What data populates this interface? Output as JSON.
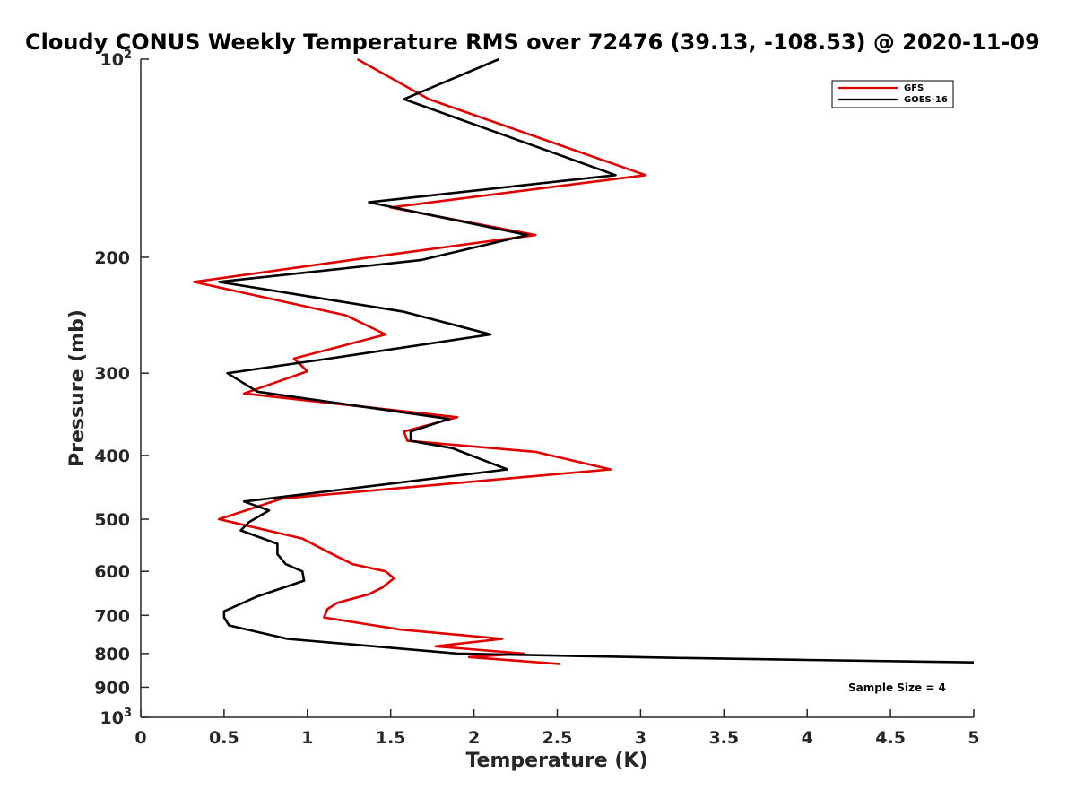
{
  "chart_data": {
    "type": "line",
    "title": "Cloudy CONUS Weekly Temperature RMS over 72476 (39.13, -108.53) @ 2020-11-09",
    "xlabel": "Temperature (K)",
    "ylabel": "Pressure (mb)",
    "xlim": [
      0,
      5
    ],
    "ylim": [
      100,
      1000
    ],
    "yscale": "log",
    "yreversed": true,
    "x_ticks": [
      "0",
      "0.5",
      "1",
      "1.5",
      "2",
      "2.5",
      "3",
      "3.5",
      "4",
      "4.5",
      "5"
    ],
    "y_ticks": [
      {
        "value": 100,
        "base": "10",
        "exp": "2"
      },
      {
        "value": 200,
        "label": "200"
      },
      {
        "value": 300,
        "label": "300"
      },
      {
        "value": 400,
        "label": "400"
      },
      {
        "value": 500,
        "label": "500"
      },
      {
        "value": 600,
        "label": "600"
      },
      {
        "value": 700,
        "label": "700"
      },
      {
        "value": 800,
        "label": "800"
      },
      {
        "value": 900,
        "label": "900"
      },
      {
        "value": 1000,
        "base": "10",
        "exp": "3"
      }
    ],
    "legend_position": "top-right",
    "annotation": "Sample Size = 4",
    "series": [
      {
        "name": "GFS",
        "color": "#e00000",
        "points": [
          [
            1.3,
            100
          ],
          [
            1.73,
            115
          ],
          [
            3.03,
            150
          ],
          [
            1.5,
            168
          ],
          [
            2.37,
            185
          ],
          [
            1.5,
            198
          ],
          [
            0.32,
            218
          ],
          [
            1.23,
            245
          ],
          [
            1.47,
            262
          ],
          [
            0.92,
            285
          ],
          [
            1.0,
            298
          ],
          [
            0.62,
            322
          ],
          [
            1.9,
            350
          ],
          [
            1.58,
            368
          ],
          [
            1.6,
            380
          ],
          [
            2.37,
            395
          ],
          [
            2.82,
            420
          ],
          [
            0.85,
            465
          ],
          [
            0.47,
            500
          ],
          [
            0.97,
            535
          ],
          [
            1.12,
            560
          ],
          [
            1.27,
            585
          ],
          [
            1.47,
            600
          ],
          [
            1.52,
            615
          ],
          [
            1.45,
            635
          ],
          [
            1.37,
            650
          ],
          [
            1.18,
            670
          ],
          [
            1.12,
            685
          ],
          [
            1.1,
            705
          ],
          [
            1.55,
            735
          ],
          [
            2.17,
            760
          ],
          [
            1.77,
            780
          ],
          [
            2.3,
            800
          ],
          [
            1.97,
            810
          ],
          [
            2.52,
            830
          ]
        ]
      },
      {
        "name": "GOES-16",
        "color": "#000000",
        "points": [
          [
            2.15,
            100
          ],
          [
            1.58,
            115
          ],
          [
            2.85,
            150
          ],
          [
            1.37,
            165
          ],
          [
            2.32,
            185
          ],
          [
            1.68,
            202
          ],
          [
            0.47,
            218
          ],
          [
            1.58,
            242
          ],
          [
            2.1,
            262
          ],
          [
            1.13,
            285
          ],
          [
            0.52,
            300
          ],
          [
            0.7,
            320
          ],
          [
            1.85,
            352
          ],
          [
            1.62,
            368
          ],
          [
            1.62,
            380
          ],
          [
            1.87,
            390
          ],
          [
            2.2,
            420
          ],
          [
            0.62,
            470
          ],
          [
            0.77,
            485
          ],
          [
            0.65,
            505
          ],
          [
            0.6,
            520
          ],
          [
            0.82,
            545
          ],
          [
            0.82,
            565
          ],
          [
            0.87,
            585
          ],
          [
            0.97,
            600
          ],
          [
            0.98,
            620
          ],
          [
            0.7,
            655
          ],
          [
            0.5,
            690
          ],
          [
            0.5,
            705
          ],
          [
            0.53,
            725
          ],
          [
            0.88,
            760
          ],
          [
            1.9,
            800
          ],
          [
            3.17,
            812
          ],
          [
            4.0,
            818
          ],
          [
            5.0,
            825
          ]
        ]
      }
    ]
  }
}
